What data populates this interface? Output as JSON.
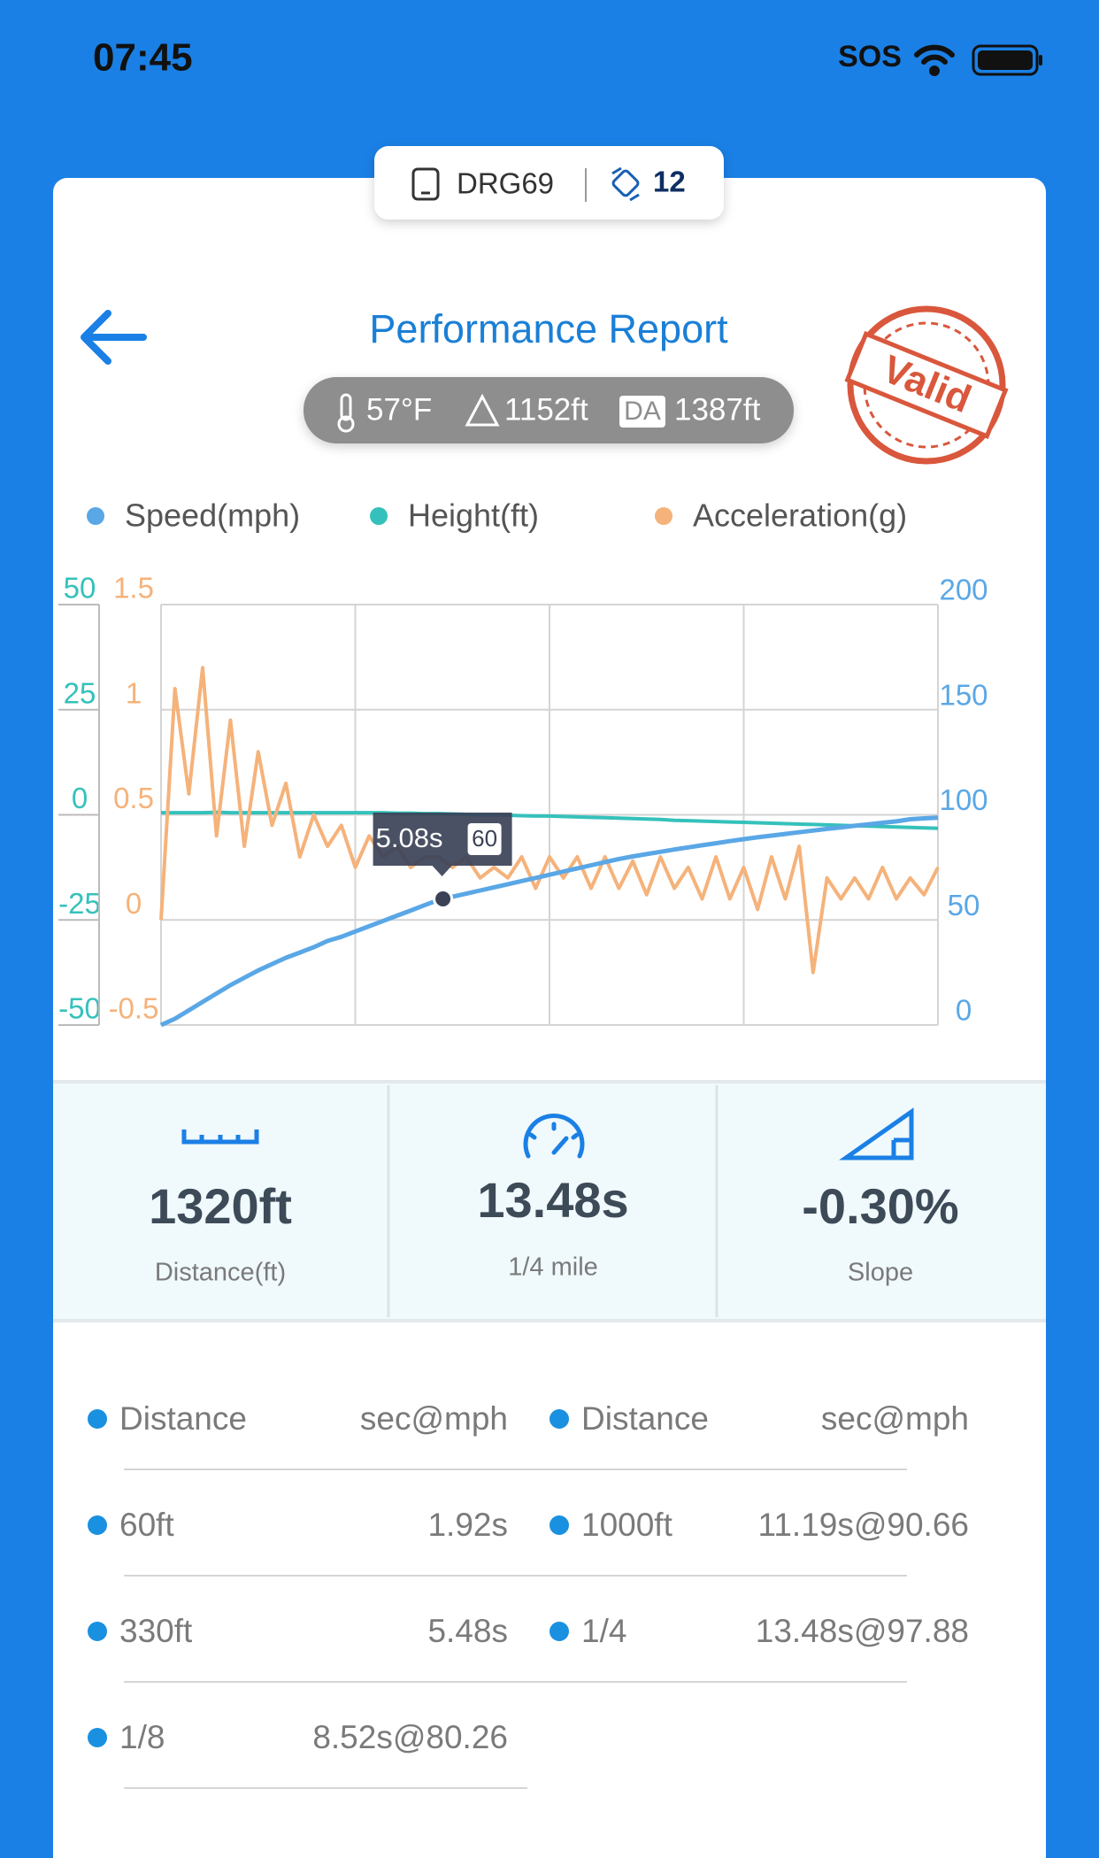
{
  "status_bar": {
    "time": "07:45",
    "sos": "SOS"
  },
  "device": {
    "name": "DRG69",
    "count": "12"
  },
  "header": {
    "title": "Performance Report"
  },
  "conditions": {
    "temperature": "57°F",
    "elevation": "1152ft",
    "da_label": "DA",
    "density_altitude": "1387ft"
  },
  "stamp": "Valid",
  "chart_data": {
    "type": "line",
    "xlim": [
      0,
      14
    ],
    "grid": true,
    "ylim": [
      -50,
      50
    ],
    "yticks": [
      -50,
      -25,
      0,
      25,
      50
    ],
    "y2lim": [
      0,
      200
    ],
    "y2ticks": [
      0,
      50,
      100,
      150,
      200
    ],
    "y3lim": [
      -0.5,
      1.5
    ],
    "y3ticks": [
      -0.5,
      0,
      0.5,
      1,
      1.5
    ],
    "x": [
      0,
      0.25,
      0.5,
      0.75,
      1,
      1.25,
      1.5,
      1.75,
      2,
      2.25,
      2.5,
      2.75,
      3,
      3.25,
      3.5,
      3.75,
      4,
      4.25,
      4.5,
      4.75,
      5,
      5.25,
      5.5,
      5.75,
      6,
      6.25,
      6.5,
      6.75,
      7,
      7.25,
      7.5,
      7.75,
      8,
      8.25,
      8.5,
      8.75,
      9,
      9.25,
      9.5,
      9.75,
      10,
      10.25,
      10.5,
      10.75,
      11,
      11.25,
      11.5,
      11.75,
      12,
      12.25,
      12.5,
      12.75,
      13,
      13.25,
      13.5,
      13.75,
      14
    ],
    "series": [
      {
        "name": "Speed(mph)",
        "color": "#5aa7e6",
        "axis": "y2",
        "values": [
          0,
          3,
          7,
          11,
          15,
          19,
          22.5,
          26,
          29,
          32,
          34.5,
          37,
          40,
          42,
          44.5,
          47,
          49.5,
          52,
          54.5,
          57,
          59.5,
          61,
          62.5,
          64,
          65.5,
          67,
          68.5,
          70,
          71.5,
          73,
          74.5,
          76,
          77.5,
          79,
          80.2,
          81.3,
          82.4,
          83.5,
          84.5,
          85.5,
          86.5,
          87.5,
          88.4,
          89.3,
          90.1,
          90.9,
          91.7,
          92.5,
          93.3,
          94,
          94.8,
          95.5,
          96.2,
          96.9,
          97.9,
          98.3,
          98.6
        ]
      },
      {
        "name": "Height(ft)",
        "color": "#35c1bb",
        "axis": "y",
        "values": [
          0.5,
          0.5,
          0.5,
          0.5,
          0.6,
          0.5,
          0.5,
          0.5,
          0.5,
          0.5,
          0.5,
          0.5,
          0.5,
          0.5,
          0.5,
          0.5,
          0.5,
          0.4,
          0.4,
          0.3,
          0.3,
          0.2,
          0.1,
          0,
          0,
          -0.1,
          -0.2,
          -0.3,
          -0.3,
          -0.4,
          -0.5,
          -0.6,
          -0.7,
          -0.8,
          -0.9,
          -1,
          -1.1,
          -1.3,
          -1.4,
          -1.5,
          -1.6,
          -1.7,
          -1.8,
          -1.9,
          -2,
          -2.1,
          -2.2,
          -2.3,
          -2.4,
          -2.5,
          -2.6,
          -2.7,
          -2.8,
          -2.9,
          -3,
          -3.1,
          -3.2
        ]
      },
      {
        "name": "Acceleration(g)",
        "color": "#f5b27a",
        "axis": "y3",
        "values": [
          0,
          1.1,
          0.6,
          1.2,
          0.4,
          0.95,
          0.35,
          0.8,
          0.45,
          0.65,
          0.3,
          0.5,
          0.35,
          0.45,
          0.25,
          0.4,
          0.3,
          0.35,
          0.25,
          0.3,
          0.3,
          0.25,
          0.3,
          0.2,
          0.25,
          0.2,
          0.3,
          0.15,
          0.3,
          0.2,
          0.3,
          0.15,
          0.3,
          0.15,
          0.28,
          0.12,
          0.3,
          0.15,
          0.25,
          0.1,
          0.3,
          0.1,
          0.25,
          0.05,
          0.3,
          0.1,
          0.35,
          -0.25,
          0.2,
          0.1,
          0.2,
          0.1,
          0.25,
          0.1,
          0.2,
          0.12,
          0.25
        ]
      }
    ],
    "tooltip": {
      "x": {
        "value": 5.08,
        "label": "5.08s"
      },
      "y": 60
    }
  },
  "stats": [
    {
      "value": "1320ft",
      "label": "Distance(ft)"
    },
    {
      "value": "13.48s",
      "label": "1/4 mile"
    },
    {
      "value": "-0.30%",
      "label": "Slope"
    }
  ],
  "splits": {
    "headers": [
      "Distance",
      "sec@mph"
    ],
    "rows": [
      [
        "60ft",
        "1.92s"
      ],
      [
        "330ft",
        "5.48s"
      ],
      [
        "1/8",
        "8.52s@80.26"
      ],
      [
        "1000ft",
        "11.19s@90.66"
      ],
      [
        "1/4",
        "13.48s@97.88"
      ]
    ]
  }
}
